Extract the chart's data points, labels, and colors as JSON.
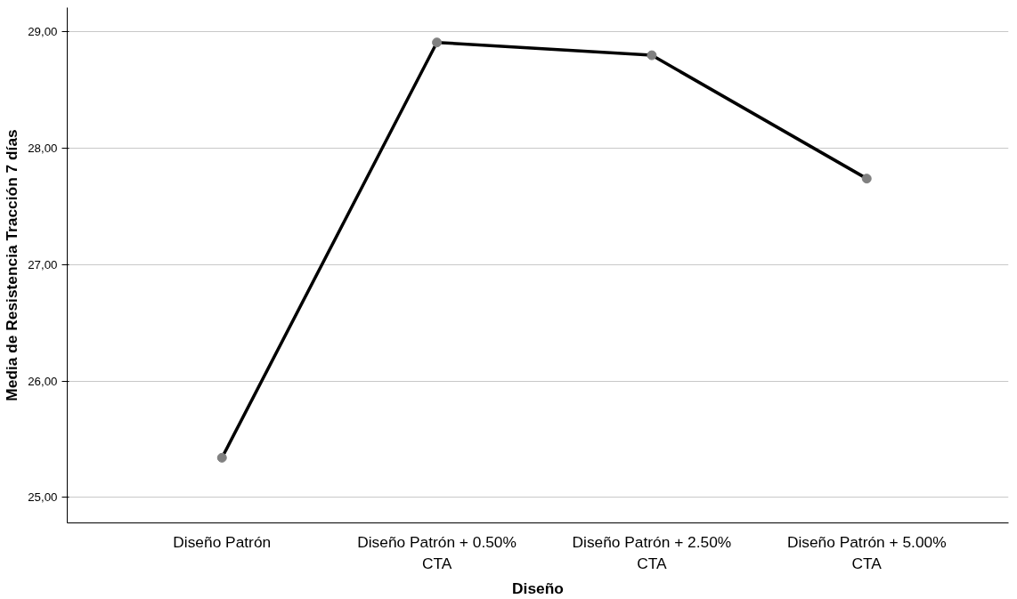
{
  "chart_data": {
    "type": "line",
    "xlabel": "Diseño",
    "ylabel": "Media de Resistencia Tracción 7 días",
    "categories": [
      "Diseño Patrón",
      "Diseño Patrón + 0.50%\nCTA",
      "Diseño Patrón + 2.50%\nCTA",
      "Diseño Patrón + 5.00%\nCTA"
    ],
    "series": [
      {
        "color": "#000000",
        "values": [
          25.34,
          28.91,
          28.8,
          27.74
        ]
      }
    ],
    "marker": "circle",
    "line_style": "solid",
    "grid": "y",
    "ylim": [
      24.78,
      29.21
    ],
    "yticks": [
      {
        "value": 25,
        "label": "25,00"
      },
      {
        "value": 26,
        "label": "26,00"
      },
      {
        "value": 27,
        "label": "27,00"
      },
      {
        "value": 28,
        "label": "28,00"
      },
      {
        "value": 29,
        "label": "29,00"
      }
    ]
  }
}
